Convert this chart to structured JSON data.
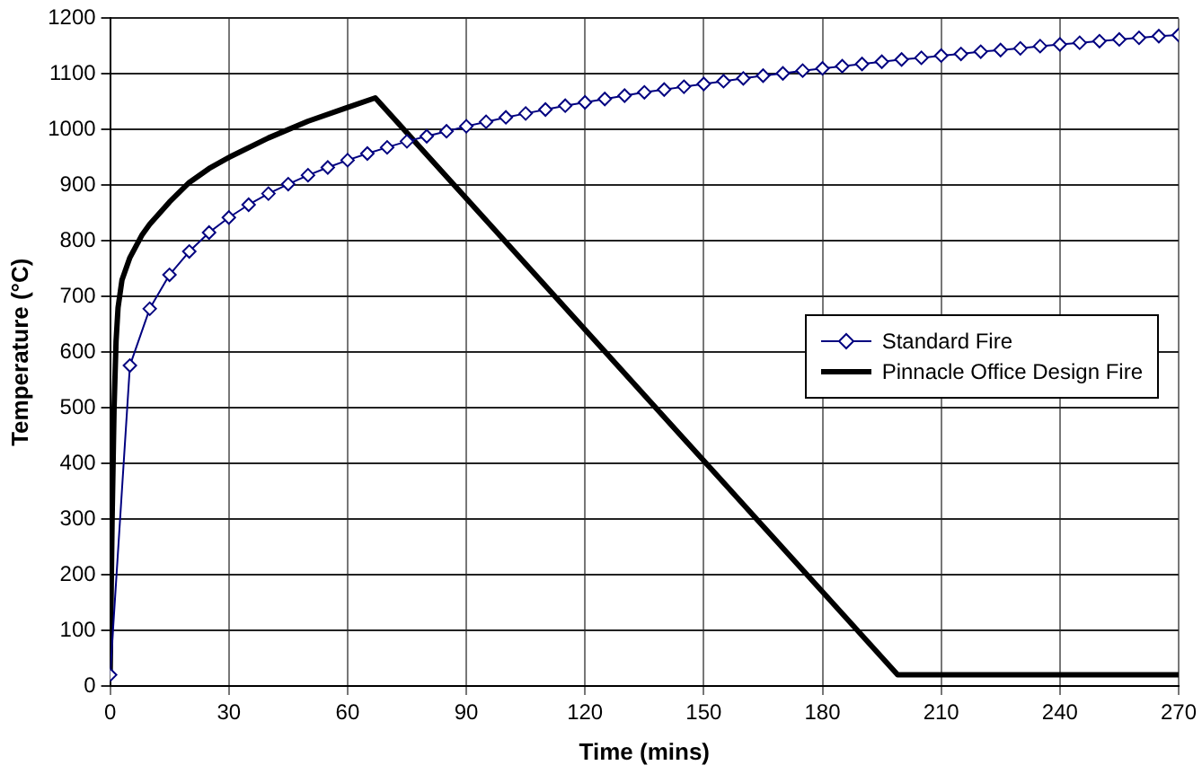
{
  "chart_data": {
    "type": "line",
    "xlabel": "Time (mins)",
    "ylabel": "Temperature (°C)",
    "xlim": [
      0,
      270
    ],
    "xticks": [
      0,
      30,
      60,
      90,
      120,
      150,
      180,
      210,
      240,
      270
    ],
    "ylim": [
      0,
      1200
    ],
    "yticks": [
      0,
      100,
      200,
      300,
      400,
      500,
      600,
      700,
      800,
      900,
      1000,
      1100,
      1200
    ],
    "grid": true,
    "legend": "right",
    "series": [
      {
        "name": "Standard Fire",
        "color": "#000080",
        "marker": "diamond",
        "x": [
          0,
          5,
          10,
          15,
          20,
          25,
          30,
          35,
          40,
          45,
          50,
          55,
          60,
          65,
          70,
          75,
          80,
          85,
          90,
          95,
          100,
          105,
          110,
          115,
          120,
          125,
          130,
          135,
          140,
          145,
          150,
          155,
          160,
          165,
          170,
          175,
          180,
          185,
          190,
          195,
          200,
          205,
          210,
          215,
          220,
          225,
          230,
          235,
          240,
          245,
          250,
          255,
          260,
          265,
          270
        ],
        "values": [
          20,
          576,
          678,
          739,
          781,
          815,
          842,
          865,
          885,
          902,
          918,
          932,
          945,
          957,
          968,
          979,
          988,
          997,
          1006,
          1014,
          1022,
          1029,
          1036,
          1043,
          1049,
          1055,
          1061,
          1067,
          1072,
          1077,
          1082,
          1087,
          1092,
          1097,
          1101,
          1106,
          1110,
          1114,
          1118,
          1122,
          1126,
          1129,
          1133,
          1136,
          1140,
          1143,
          1146,
          1150,
          1153,
          1156,
          1159,
          1162,
          1165,
          1168,
          1170
        ]
      },
      {
        "name": "Pinnacle Office Design Fire",
        "color": "#000000",
        "marker": "none",
        "x": [
          0,
          0.5,
          1,
          1.5,
          2,
          3,
          5,
          8,
          10,
          15,
          20,
          25,
          30,
          40,
          50,
          60,
          67,
          199,
          270
        ],
        "values": [
          20,
          300,
          500,
          620,
          680,
          730,
          770,
          810,
          830,
          870,
          905,
          930,
          950,
          985,
          1015,
          1040,
          1057,
          20,
          20
        ]
      }
    ]
  }
}
